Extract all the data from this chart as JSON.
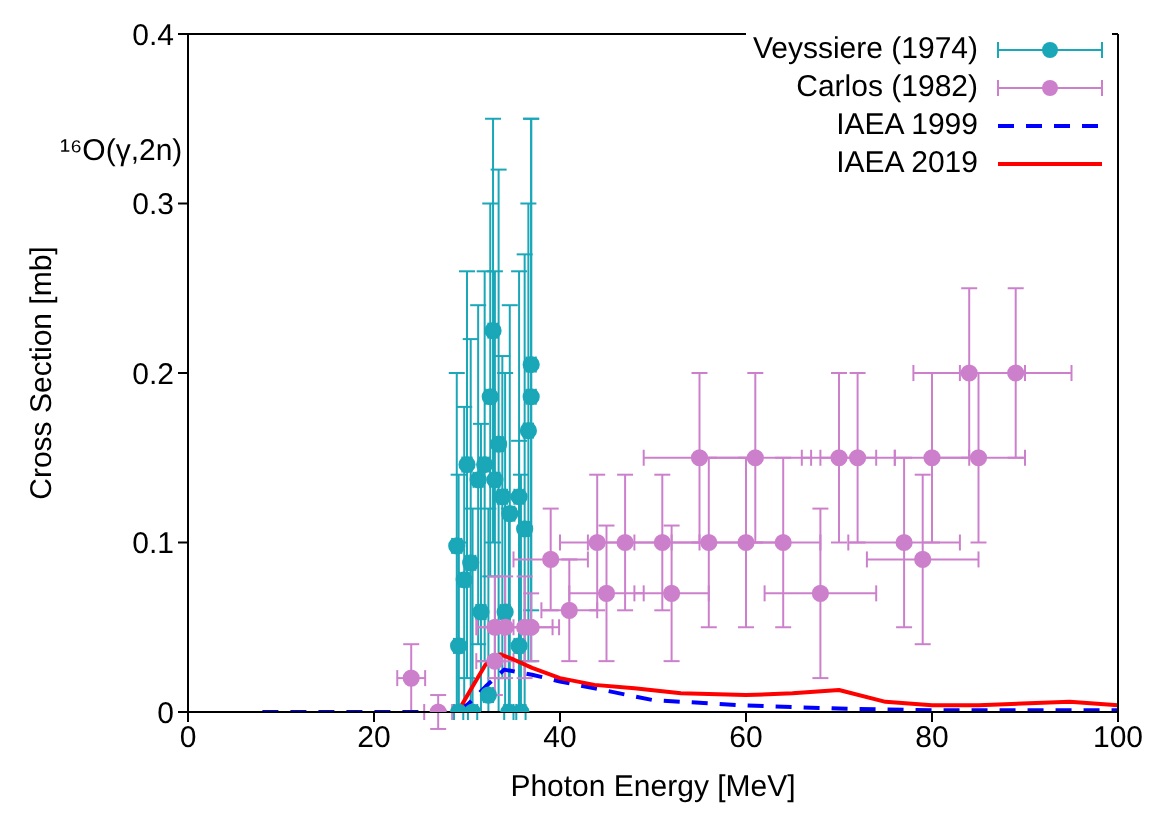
{
  "chart_data": {
    "type": "scatter",
    "xlabel": "Photon Energy [MeV]",
    "ylabel": "Cross Section [mb]",
    "xlim": [
      0,
      100
    ],
    "xticks": [
      0,
      20,
      40,
      60,
      80,
      100
    ],
    "ylim": [
      0,
      0.4
    ],
    "yticks": [
      0,
      0.1,
      0.2,
      0.3,
      0.4
    ],
    "legend": "top right",
    "grid": false,
    "annotations": [
      "¹⁶O(γ,2n)"
    ],
    "series": [
      {
        "name": "Veyssiere (1974)",
        "marker": "circle",
        "color": "#1aa7b8",
        "x": [
          32.8,
          36.9,
          32.5,
          36.9,
          36.6,
          33.4,
          30.0,
          31.9,
          31.2,
          33.0,
          33.8,
          35.6,
          34.6,
          36.2,
          28.9,
          30.4,
          29.7,
          31.5,
          34.1,
          29.1,
          35.6,
          32.3,
          29.1,
          30.6,
          34.5,
          35.8
        ],
        "values": [
          0.225,
          0.205,
          0.186,
          0.186,
          0.166,
          0.158,
          0.146,
          0.146,
          0.137,
          0.137,
          0.127,
          0.127,
          0.117,
          0.108,
          0.098,
          0.088,
          0.078,
          0.059,
          0.059,
          0.039,
          0.039,
          0.01,
          0,
          0,
          0,
          0
        ],
        "errors": [
          [
            0.1,
            0.35
          ],
          [
            0.06,
            0.35
          ],
          [
            0.08,
            0.3
          ],
          [
            0.03,
            0.35
          ],
          [
            0.03,
            0.3
          ],
          [
            0,
            0.32
          ],
          [
            0.02,
            0.26
          ],
          [
            0.03,
            0.26
          ],
          [
            0.04,
            0.24
          ],
          [
            0.03,
            0.26
          ],
          [
            0.02,
            0.21
          ],
          [
            0,
            0.26
          ],
          [
            0,
            0.24
          ],
          [
            0,
            0.27
          ],
          [
            0,
            0.2
          ],
          [
            0,
            0.22
          ],
          [
            0,
            0.18
          ],
          [
            0,
            0.17
          ],
          [
            0,
            0.2
          ],
          [
            0,
            0.14
          ],
          [
            0,
            0.16
          ],
          [
            0,
            0.12
          ],
          [
            0,
            0.1
          ],
          [
            0,
            0.12
          ],
          [
            0,
            0.12
          ],
          [
            0,
            0.14
          ]
        ],
        "xerrors": [
          0.5,
          0.5,
          0.5,
          0.5,
          0.5,
          0.5,
          0.5,
          0.5,
          0.5,
          0.5,
          0.5,
          0.5,
          0.5,
          0.5,
          0.5,
          0.5,
          0.5,
          0.5,
          0.5,
          0.5,
          0.5,
          0.5,
          0.5,
          0.5,
          0.5,
          0.5
        ]
      },
      {
        "name": "Carlos (1982)",
        "marker": "circle",
        "color": "#cc80cc",
        "x": [
          24.0,
          26.9,
          33.0,
          33.0,
          34.1,
          36.2,
          36.9,
          39,
          41,
          44,
          45,
          47,
          51,
          52,
          55,
          56,
          60,
          61,
          64,
          68,
          70,
          72,
          77,
          79,
          80,
          84,
          85,
          89
        ],
        "values": [
          0.02,
          0,
          0.03,
          0.05,
          0.05,
          0.05,
          0.05,
          0.09,
          0.06,
          0.1,
          0.07,
          0.1,
          0.1,
          0.07,
          0.15,
          0.1,
          0.1,
          0.15,
          0.1,
          0.07,
          0.15,
          0.15,
          0.1,
          0.09,
          0.15,
          0.2,
          0.15,
          0.2
        ],
        "errors": [
          0.02,
          0.01,
          0.02,
          0.03,
          0.03,
          0.03,
          0.02,
          0.03,
          0.03,
          0.04,
          0.04,
          0.04,
          0.04,
          0.04,
          0.05,
          0.05,
          0.05,
          0.05,
          0.05,
          0.05,
          0.05,
          0.05,
          0.05,
          0.05,
          0.05,
          0.05,
          0.05,
          0.05
        ],
        "xerrors": [
          1.5,
          1.5,
          2,
          2,
          3,
          3,
          3,
          4,
          3,
          4,
          4,
          4,
          4,
          4,
          6,
          4,
          4,
          6,
          4,
          6,
          4,
          4,
          6,
          6,
          4,
          6,
          5,
          6
        ]
      },
      {
        "name": "IAEA 1999",
        "type": "line",
        "marker": "none",
        "line_style": "dashed",
        "color": "#0000ff",
        "x": [
          8,
          20,
          28,
          30,
          32,
          34,
          37,
          40,
          43.7,
          50,
          59.5,
          70,
          80,
          90,
          100
        ],
        "values": [
          0,
          0,
          0,
          0.004,
          0.015,
          0.025,
          0.022,
          0.018,
          0.014,
          0.007,
          0.004,
          0.002,
          0.001,
          0.001,
          0.001
        ]
      },
      {
        "name": "IAEA 2019",
        "type": "line",
        "marker": "none",
        "line_style": "solid",
        "color": "#ff0000",
        "x": [
          29,
          30.8,
          32,
          33.6,
          35,
          37,
          40,
          43.7,
          48,
          53,
          60,
          65,
          70,
          75,
          80,
          85,
          89.7,
          94.8,
          100
        ],
        "values": [
          0,
          0.017,
          0.028,
          0.034,
          0.031,
          0.026,
          0.02,
          0.016,
          0.014,
          0.011,
          0.01,
          0.011,
          0.013,
          0.006,
          0.004,
          0.004,
          0.005,
          0.006,
          0.004
        ]
      }
    ]
  }
}
